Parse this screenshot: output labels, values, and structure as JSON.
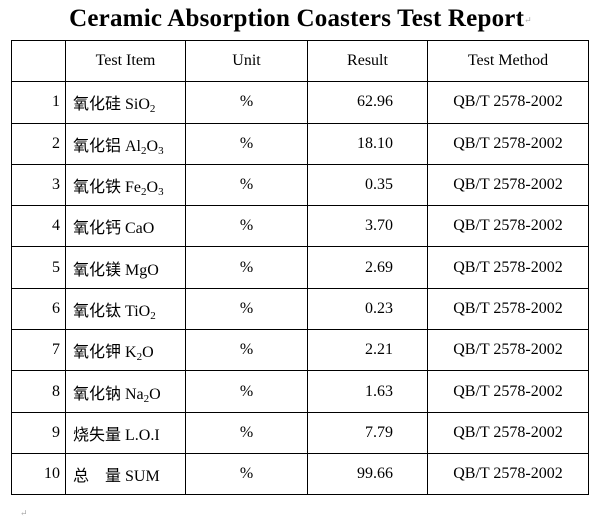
{
  "title": "Ceramic Absorption Coasters Test Report",
  "headers": [
    "",
    "Test Item",
    "Unit",
    "Result",
    "Test Method"
  ],
  "rows": [
    {
      "no": "1",
      "item": "氧化硅 SiO",
      "sub": "2",
      "post": "",
      "unit": "%",
      "result": "62.96",
      "method": "QB/T 2578-2002"
    },
    {
      "no": "2",
      "item": "氧化铝 Al",
      "sub": "2",
      "post": "O",
      "sub2": "3",
      "unit": "%",
      "result": "18.10",
      "method": "QB/T 2578-2002"
    },
    {
      "no": "3",
      "item": "氧化铁 Fe",
      "sub": "2",
      "post": "O",
      "sub2": "3",
      "unit": "%",
      "result": "0.35",
      "method": "QB/T 2578-2002"
    },
    {
      "no": "4",
      "item": "氧化钙 CaO",
      "unit": "%",
      "result": "3.70",
      "method": "QB/T 2578-2002"
    },
    {
      "no": "5",
      "item": "氧化镁 MgO",
      "unit": "%",
      "result": "2.69",
      "method": "QB/T 2578-2002"
    },
    {
      "no": "6",
      "item": "氧化钛 TiO",
      "sub": "2",
      "unit": "%",
      "result": "0.23",
      "method": "QB/T 2578-2002"
    },
    {
      "no": "7",
      "item": "氧化钾 K",
      "sub": "2",
      "post": "O",
      "unit": "%",
      "result": "2.21",
      "method": "QB/T 2578-2002"
    },
    {
      "no": "8",
      "item": "氧化钠 Na",
      "sub": "2",
      "post": "O",
      "unit": "%",
      "result": "1.63",
      "method": "QB/T 2578-2002"
    },
    {
      "no": "9",
      "item": "烧失量 L.O.I",
      "unit": "%",
      "result": "7.79",
      "method": "QB/T 2578-2002"
    },
    {
      "no": "10",
      "item": "总　量 SUM",
      "unit": "%",
      "result": "99.66",
      "method": "QB/T 2578-2002"
    }
  ]
}
